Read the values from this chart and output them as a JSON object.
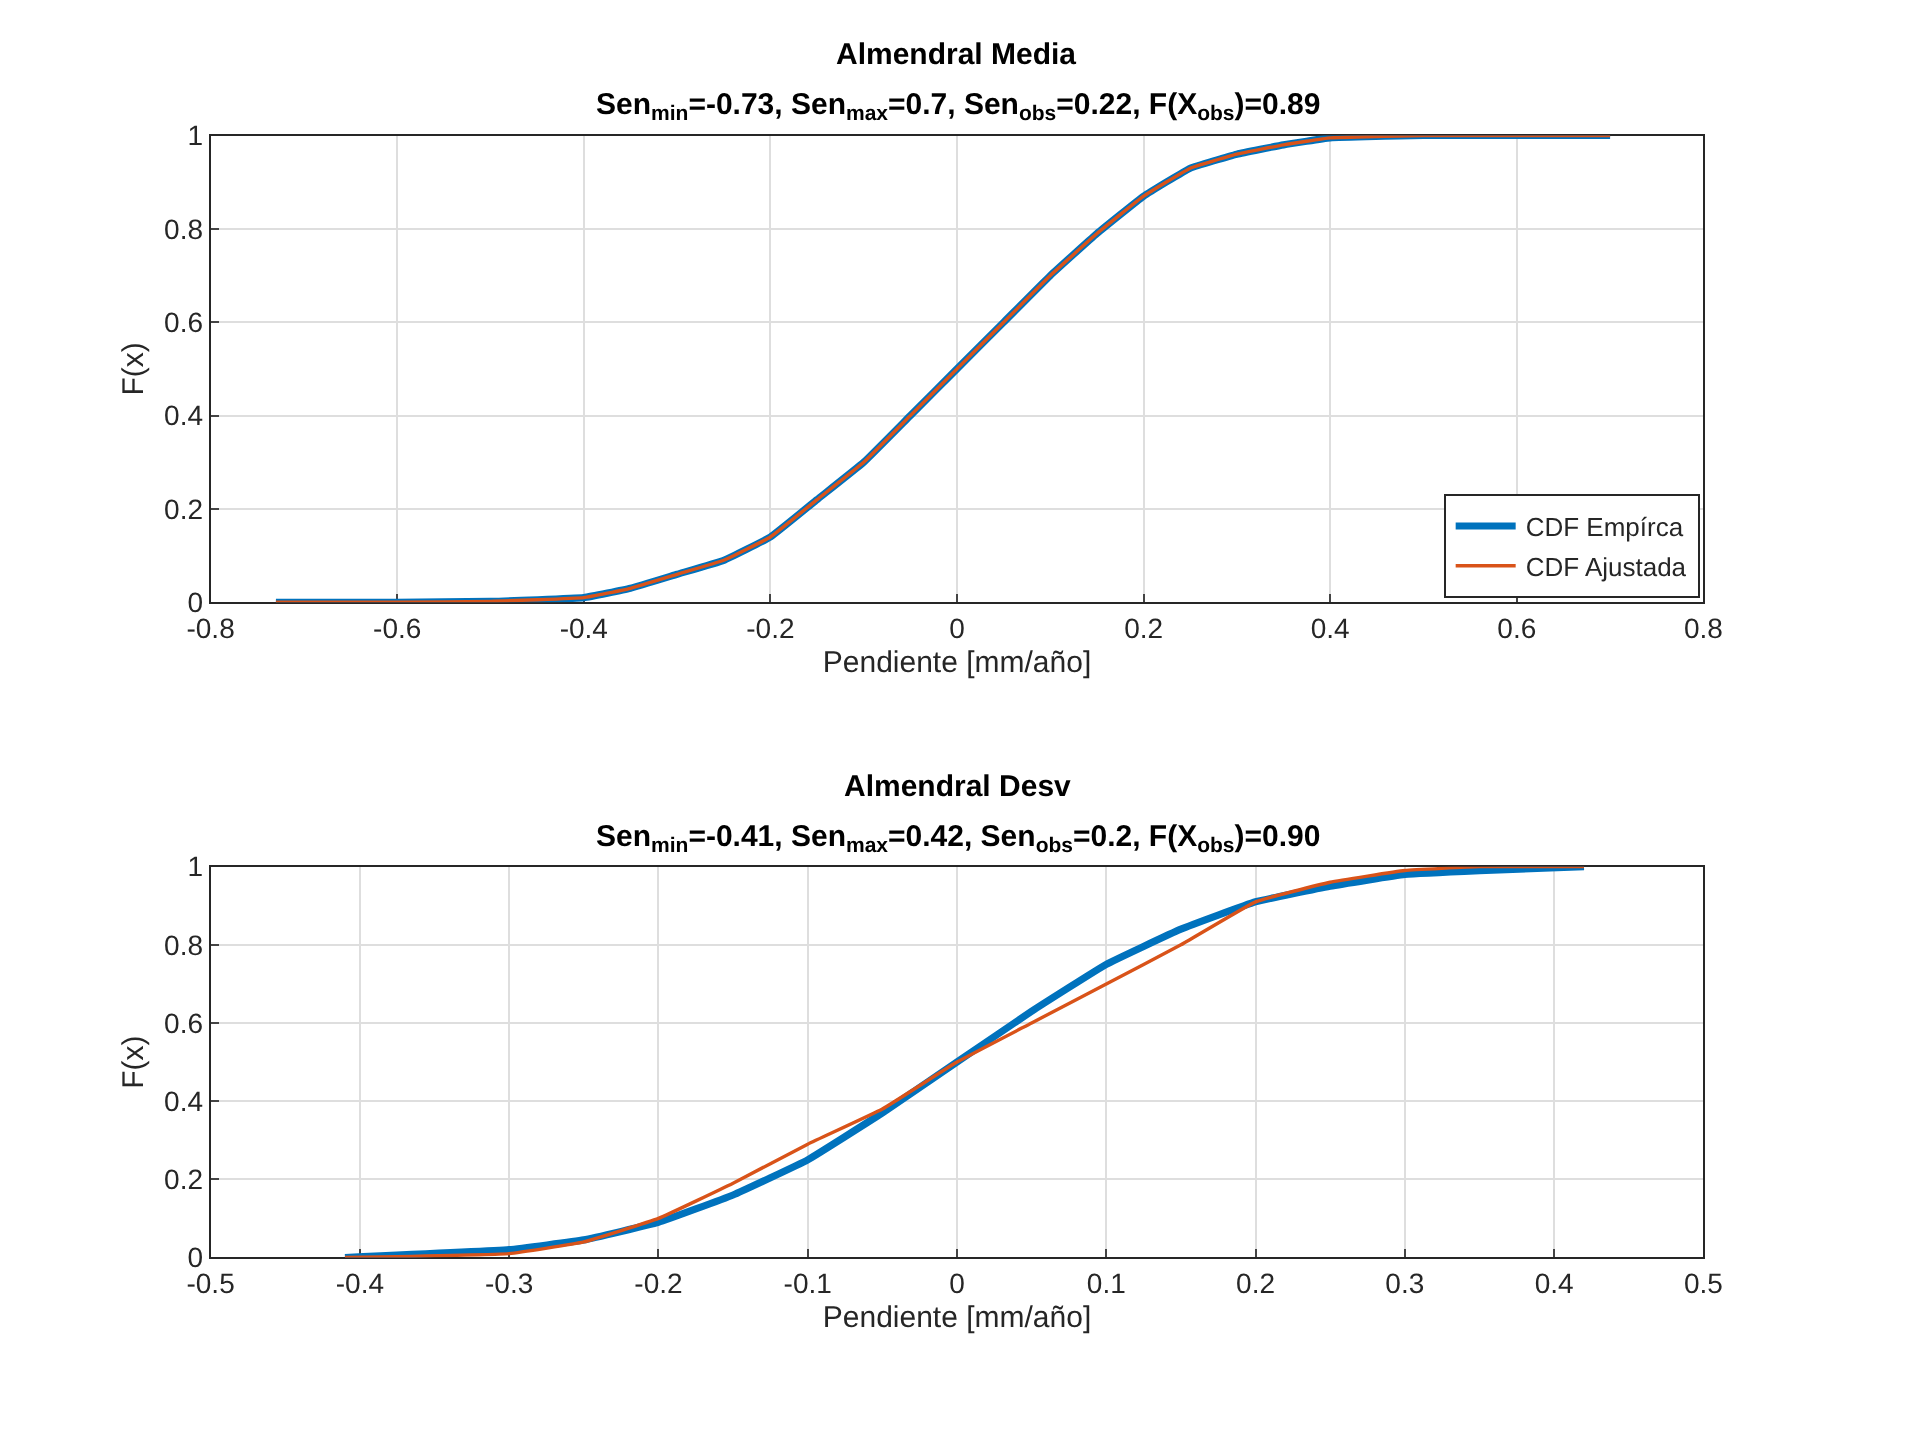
{
  "chart_data": [
    {
      "type": "line",
      "title": "Almendral Media",
      "subtitle": "Sen$_{min}$=-0.73, Sen$_{max}$=0.7, Sen$_{obs}$=0.22, F(X$_{obs}$)=0.89",
      "xlabel": "Pendiente [mm/año]",
      "ylabel": "F(x)",
      "xlim": [
        -0.8,
        0.8
      ],
      "xticks": [
        -0.8,
        -0.6,
        -0.4,
        -0.2,
        0,
        0.2,
        0.4,
        0.6,
        0.8
      ],
      "ylim": [
        0,
        1
      ],
      "yticks": [
        0,
        0.2,
        0.4,
        0.6,
        0.8,
        1
      ],
      "grid": true,
      "legend": "bottom right",
      "line_style": "solid",
      "x": [
        -0.73,
        -0.6,
        -0.5,
        -0.4,
        -0.35,
        -0.3,
        -0.25,
        -0.2,
        -0.15,
        -0.1,
        -0.05,
        0,
        0.05,
        0.1,
        0.15,
        0.2,
        0.25,
        0.3,
        0.35,
        0.4,
        0.5,
        0.7
      ],
      "series": [
        {
          "name": "CDF Empírca",
          "color": "#0072bd",
          "values": [
            0,
            0,
            0.002,
            0.01,
            0.03,
            0.06,
            0.09,
            0.14,
            0.22,
            0.3,
            0.4,
            0.5,
            0.6,
            0.7,
            0.79,
            0.87,
            0.93,
            0.96,
            0.98,
            0.995,
            1,
            1
          ]
        },
        {
          "name": "CDF Ajustada",
          "color": "#d95319",
          "values": [
            0,
            0,
            0.002,
            0.01,
            0.03,
            0.06,
            0.09,
            0.14,
            0.22,
            0.3,
            0.4,
            0.5,
            0.6,
            0.7,
            0.79,
            0.87,
            0.93,
            0.96,
            0.98,
            0.995,
            1,
            1
          ]
        }
      ]
    },
    {
      "type": "line",
      "title": "Almendral Desv",
      "subtitle": "Sen$_{min}$=-0.41, Sen$_{max}$=0.42, Sen$_{obs}$=0.2, F(X$_{obs}$)=0.90",
      "xlabel": "Pendiente [mm/año]",
      "ylabel": "F(x)",
      "xlim": [
        -0.5,
        0.5
      ],
      "xticks": [
        -0.5,
        -0.4,
        -0.3,
        -0.2,
        -0.1,
        0,
        0.1,
        0.2,
        0.3,
        0.4,
        0.5
      ],
      "ylim": [
        0,
        1
      ],
      "yticks": [
        0,
        0.2,
        0.4,
        0.6,
        0.8,
        1
      ],
      "grid": true,
      "line_style": "solid",
      "x": [
        -0.41,
        -0.3,
        -0.25,
        -0.2,
        -0.15,
        -0.1,
        -0.05,
        0,
        0.05,
        0.1,
        0.15,
        0.2,
        0.25,
        0.3,
        0.35,
        0.42
      ],
      "series": [
        {
          "color": "#0072bd",
          "values": [
            0,
            0.02,
            0.045,
            0.09,
            0.16,
            0.25,
            0.37,
            0.5,
            0.63,
            0.75,
            0.84,
            0.91,
            0.95,
            0.98,
            0.99,
            1
          ]
        },
        {
          "color": "#d95319",
          "values": [
            0,
            0.01,
            0.04,
            0.1,
            0.19,
            0.29,
            0.38,
            0.5,
            0.6,
            0.7,
            0.8,
            0.91,
            0.96,
            0.99,
            1,
            1
          ]
        }
      ]
    }
  ]
}
